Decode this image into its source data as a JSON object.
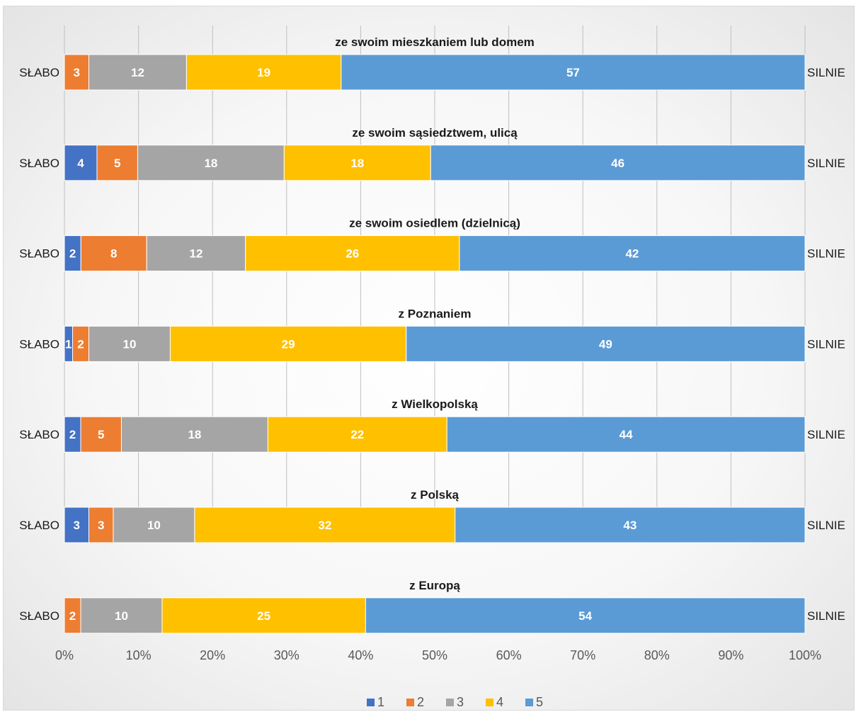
{
  "chart_data": {
    "type": "bar",
    "orientation": "horizontal",
    "stacked": true,
    "categories": [
      "ze swoim mieszkaniem lub domem",
      "ze swoim sąsiedztwem, ulicą",
      "ze swoim osiedlem (dzielnicą)",
      "z Poznaniem",
      "z Wielkopolską",
      "z Polską",
      "z Europą"
    ],
    "series": [
      {
        "name": "1",
        "color": "#4472c4",
        "values": [
          0,
          4,
          2,
          1,
          2,
          3,
          0
        ]
      },
      {
        "name": "2",
        "color": "#ed7d31",
        "values": [
          3,
          5,
          8,
          2,
          5,
          3,
          2
        ]
      },
      {
        "name": "3",
        "color": "#a5a5a5",
        "values": [
          12,
          18,
          12,
          10,
          18,
          10,
          10
        ]
      },
      {
        "name": "4",
        "color": "#ffc000",
        "values": [
          19,
          18,
          26,
          29,
          22,
          32,
          25
        ]
      },
      {
        "name": "5",
        "color": "#5b9bd5",
        "values": [
          57,
          46,
          42,
          49,
          44,
          43,
          54
        ]
      }
    ],
    "x_ticks": [
      "0%",
      "10%",
      "20%",
      "30%",
      "40%",
      "50%",
      "60%",
      "70%",
      "80%",
      "90%",
      "100%"
    ],
    "xlim": [
      0,
      100
    ],
    "left_label": "SŁABO",
    "right_label": "SILNIE",
    "grid": true,
    "legend_position": "bottom"
  }
}
